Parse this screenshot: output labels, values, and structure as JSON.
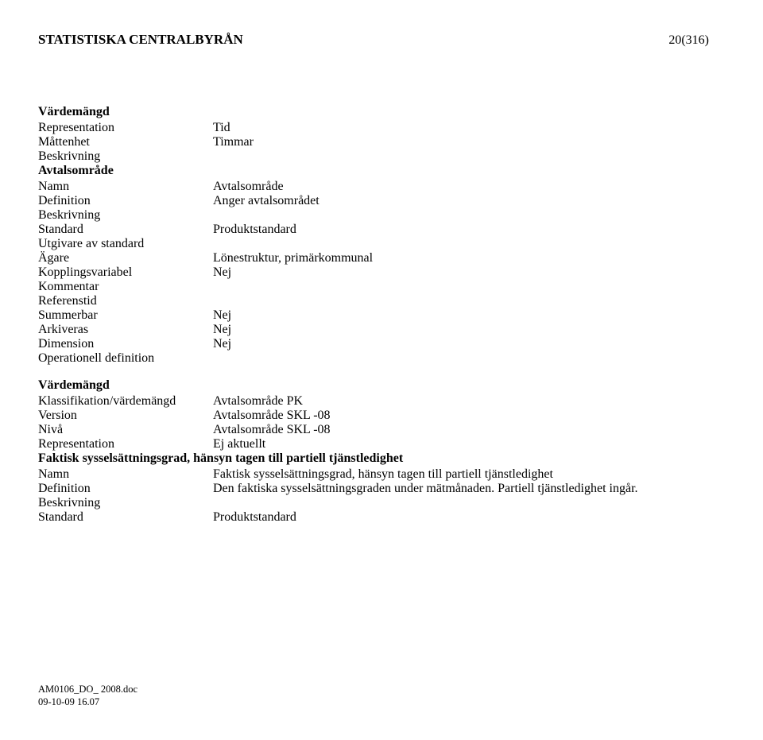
{
  "header": {
    "title": "STATISTISKA CENTRALBYRÅN",
    "page": "20(316)"
  },
  "section1": {
    "heading": "Värdemängd",
    "rows": [
      {
        "label": "Representation",
        "value": "Tid"
      },
      {
        "label": "Måttenhet",
        "value": "Timmar"
      },
      {
        "label": "Beskrivning",
        "value": ""
      }
    ],
    "subheading": "Avtalsområde",
    "rows2": [
      {
        "label": "Namn",
        "value": "Avtalsområde"
      },
      {
        "label": "Definition",
        "value": "Anger avtalsområdet"
      },
      {
        "label": "Beskrivning",
        "value": ""
      },
      {
        "label": "Standard",
        "value": "Produktstandard"
      },
      {
        "label": "Utgivare av standard",
        "value": ""
      },
      {
        "label": "Ägare",
        "value": "Lönestruktur, primärkommunal"
      },
      {
        "label": "Kopplingsvariabel",
        "value": "Nej"
      },
      {
        "label": "Kommentar",
        "value": ""
      },
      {
        "label": "Referenstid",
        "value": ""
      },
      {
        "label": "Summerbar",
        "value": "Nej"
      },
      {
        "label": "Arkiveras",
        "value": "Nej"
      },
      {
        "label": "Dimension",
        "value": "Nej"
      },
      {
        "label": "Operationell definition",
        "value": ""
      }
    ]
  },
  "section2": {
    "heading": "Värdemängd",
    "rows": [
      {
        "label": "Klassifikation/värdemängd",
        "value": "Avtalsområde PK"
      },
      {
        "label": "Version",
        "value": "Avtalsområde SKL -08"
      },
      {
        "label": "Nivå",
        "value": "Avtalsområde SKL -08"
      },
      {
        "label": "Representation",
        "value": "Ej aktuellt"
      }
    ],
    "subheading": "Faktisk sysselsättningsgrad, hänsyn tagen till partiell tjänstledighet",
    "rows2": [
      {
        "label": "Namn",
        "value": "Faktisk sysselsättningsgrad, hänsyn tagen till partiell tjänstledighet"
      },
      {
        "label": "Definition",
        "value": "Den faktiska sysselsättningsgraden under mätmånaden. Partiell tjänstledighet ingår."
      },
      {
        "label": "Beskrivning",
        "value": ""
      },
      {
        "label": "Standard",
        "value": "Produktstandard"
      }
    ]
  },
  "footer": {
    "line1": "AM0106_DO_ 2008.doc",
    "line2": "09-10-09 16.07"
  }
}
